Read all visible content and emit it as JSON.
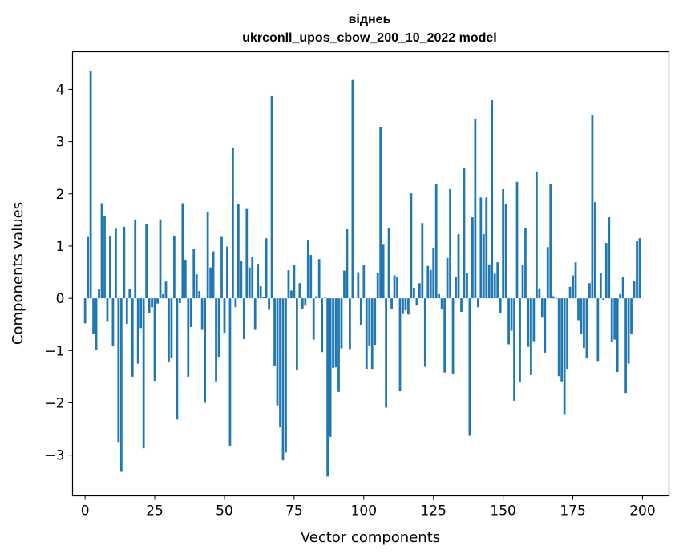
{
  "chart_data": {
    "type": "bar",
    "title": "віднеь",
    "subtitle": "ukrconll_upos_cbow_200_10_2022 model",
    "xlabel": "Vector components",
    "ylabel": "Components values",
    "x_ticks": [
      "0",
      "25",
      "50",
      "75",
      "100",
      "125",
      "150",
      "175",
      "200"
    ],
    "y_ticks": [
      "−3",
      "−2",
      "−1",
      "0",
      "1",
      "2",
      "3",
      "4"
    ],
    "xlim": [
      -4.5,
      209.5
    ],
    "ylim": [
      -3.78,
      4.72
    ],
    "grid": false,
    "bar_color": "#1f77b4",
    "values": [
      -0.48,
      1.19,
      4.35,
      -0.68,
      -0.98,
      0.17,
      1.82,
      1.57,
      -0.45,
      1.2,
      -0.92,
      1.33,
      -2.75,
      -3.32,
      1.37,
      -0.49,
      0.18,
      -1.5,
      1.51,
      -1.25,
      -0.57,
      -2.87,
      1.43,
      -0.28,
      -0.17,
      -1.58,
      -0.1,
      1.51,
      0.08,
      0.32,
      -1.21,
      -1.15,
      1.2,
      -2.32,
      -0.09,
      1.82,
      0.74,
      -1.5,
      -0.55,
      0.94,
      0.46,
      0.14,
      -0.59,
      -2.0,
      1.66,
      0.59,
      0.9,
      -1.59,
      -1.12,
      1.19,
      -0.66,
      0.99,
      -2.82,
      2.89,
      -0.17,
      1.8,
      0.71,
      -0.78,
      1.71,
      0.59,
      0.8,
      -0.59,
      0.66,
      0.23,
      0.03,
      1.15,
      -0.22,
      3.87,
      -1.29,
      -2.05,
      -2.47,
      -3.1,
      -2.95,
      0.54,
      0.15,
      0.64,
      -1.37,
      0.29,
      -0.21,
      -0.14,
      1.12,
      0.83,
      -0.79,
      0.04,
      0.75,
      -1.03,
      0.01,
      -3.41,
      -2.65,
      -1.33,
      -1.32,
      -1.79,
      -0.96,
      0.53,
      1.32,
      -0.97,
      4.18,
      0.0,
      0.5,
      -0.51,
      0.63,
      -1.35,
      -0.9,
      -1.35,
      -0.89,
      0.48,
      3.28,
      1.04,
      -2.09,
      1.35,
      -0.2,
      0.44,
      0.4,
      -1.78,
      -0.3,
      -0.23,
      -0.31,
      2.01,
      0.2,
      -0.14,
      0.29,
      1.44,
      -1.31,
      0.62,
      0.54,
      0.97,
      2.18,
      0.08,
      -0.2,
      -1.42,
      0.77,
      2.09,
      -1.45,
      0.4,
      1.23,
      -0.26,
      2.49,
      0.48,
      -2.63,
      1.55,
      3.44,
      -0.17,
      1.93,
      1.23,
      1.93,
      0.65,
      3.79,
      0.47,
      0.69,
      -0.29,
      2.09,
      1.8,
      -0.88,
      -0.62,
      -1.96,
      2.23,
      -1.61,
      0.64,
      1.34,
      -0.93,
      -1.47,
      -0.82,
      2.43,
      0.19,
      -0.37,
      -1.04,
      0.98,
      2.19,
      0.04,
      -0.01,
      -1.49,
      -1.59,
      -2.23,
      -1.35,
      0.22,
      0.44,
      0.69,
      -0.42,
      -0.68,
      -0.95,
      -1.15,
      0.29,
      3.5,
      1.84,
      -1.2,
      0.49,
      -0.03,
      1.06,
      1.55,
      -0.83,
      -0.79,
      -1.41,
      0.08,
      0.4,
      -1.81,
      -1.25,
      -0.69,
      0.33,
      1.09,
      1.15
    ]
  }
}
